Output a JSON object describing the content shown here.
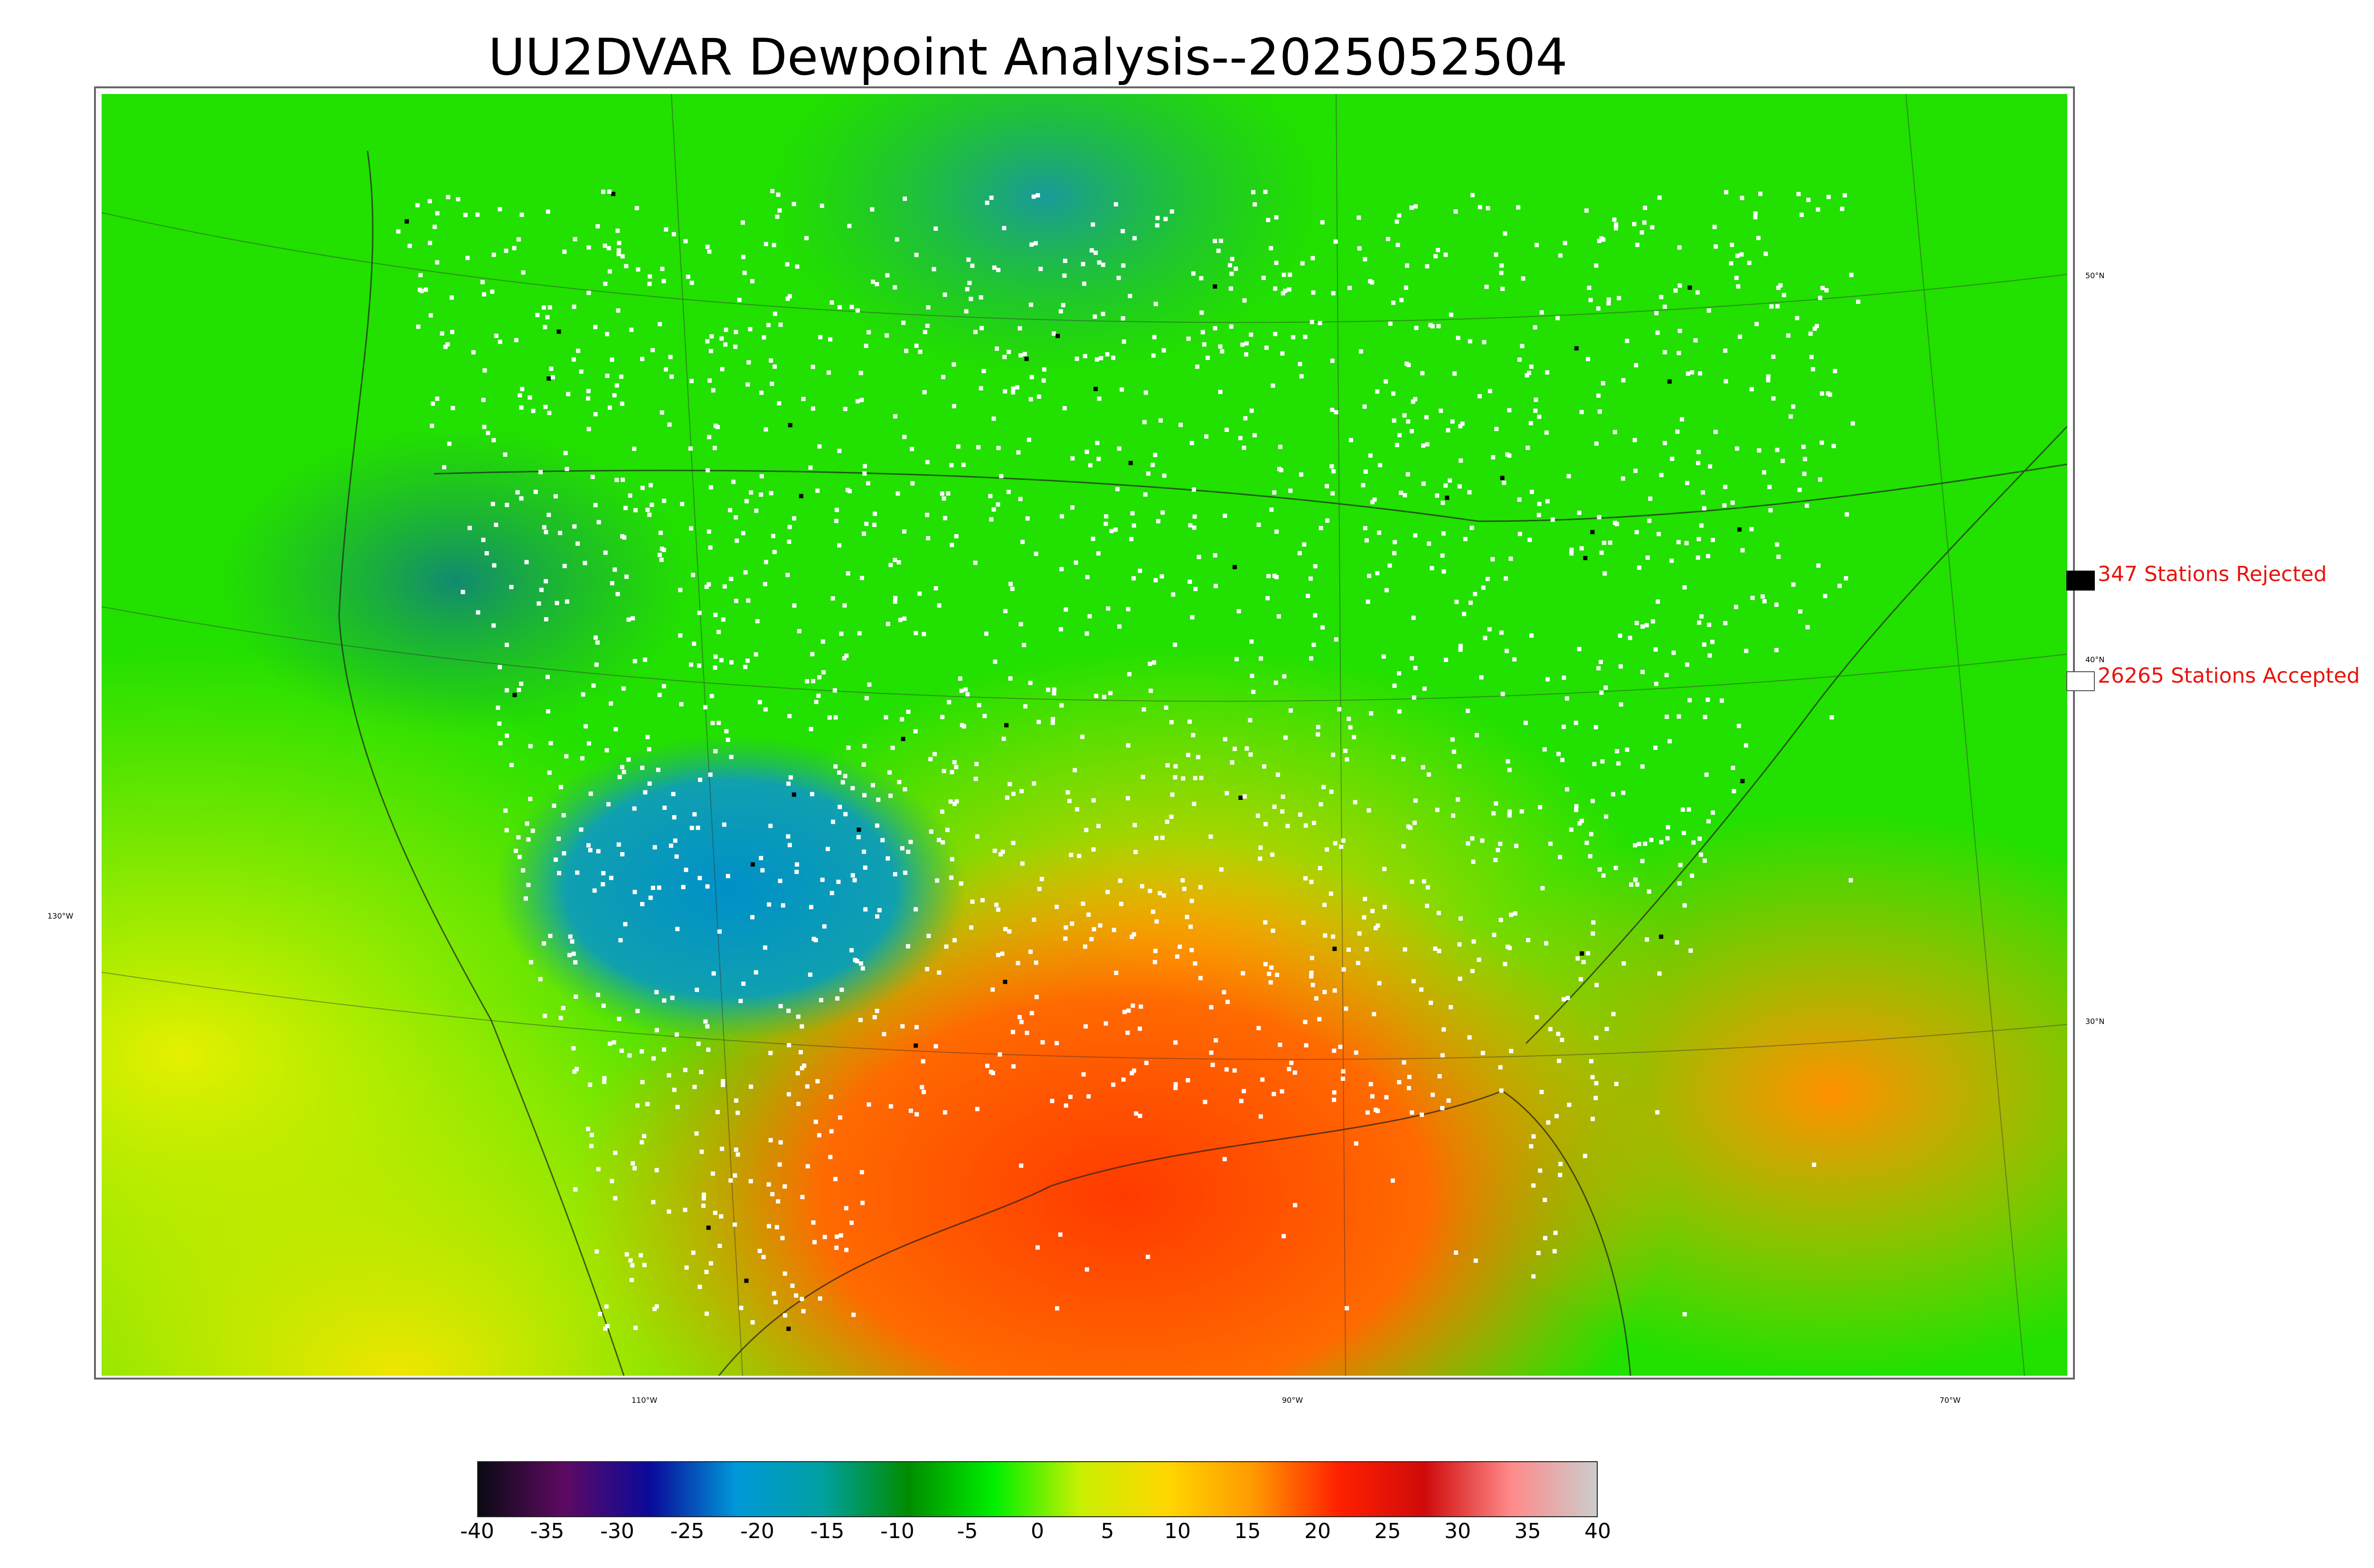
{
  "title": "UU2DVAR Dewpoint Analysis--2025052504",
  "map": {
    "lon_labels": [
      "110°W",
      "90°W",
      "70°W"
    ],
    "lat_labels": [
      "50°N",
      "40°N",
      "30°N",
      "130°W"
    ]
  },
  "legend": {
    "rejected": {
      "text": "347 Stations Rejected",
      "color": "#000000"
    },
    "accepted": {
      "text": "26265 Stations Accepted",
      "color": "#ffffff"
    }
  },
  "colorbar": {
    "ticks": [
      "-40",
      "-35",
      "-30",
      "-25",
      "-20",
      "-15",
      "-10",
      "-5",
      "0",
      "5",
      "10",
      "15",
      "20",
      "25",
      "30",
      "35",
      "40"
    ],
    "colors": [
      "#0a0a14",
      "#5e0a62",
      "#0a0a9a",
      "#0098d8",
      "#00a0a0",
      "#008c00",
      "#00f000",
      "#c8f000",
      "#ffd700",
      "#ff9a00",
      "#ff2000",
      "#d00a0a",
      "#ff8a8a",
      "#cccccc"
    ]
  }
}
